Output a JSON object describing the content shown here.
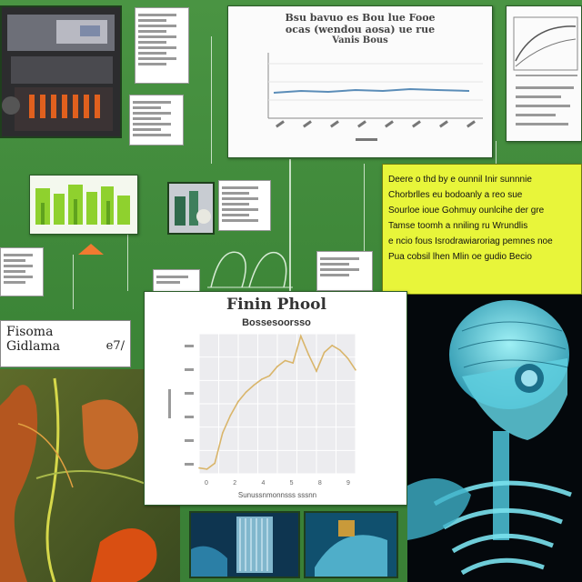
{
  "top_chart": {
    "title_line1": "Bsu bavuo es Bou lue Fooe",
    "title_line2": "ocas (wendou aosa) ue rue",
    "title_line3": "Vanis Bous"
  },
  "yellow_note": {
    "lines": [
      "Deere o thd by e ounnil Inir sunnnie",
      "Chorbrlles eu bodoanly a reo sue",
      "Sourloe ioue Gohmuy ounlcihe der gre",
      "Tamse toomh a nniling ru Wrundlis",
      "e ncio fous Isrodrawiaroriag pemnes noe",
      "Pua cobsil lhen Mlin oe gudio Becio"
    ]
  },
  "left_label": {
    "line1": "Fisoma",
    "line2": "Gidlama",
    "line3": "e7/"
  },
  "main_chart": {
    "title": "Finin Phool",
    "subtitle": "Bossesoorsso",
    "xlabel": "Sunussnmonnsss sssnn"
  },
  "chart_data": [
    {
      "type": "line",
      "title": "Finin Phool",
      "subtitle": "Bossesoorsso",
      "xlabel": "Sunussnmonnsss sssnn",
      "ylabel": "",
      "x": [
        0,
        0.5,
        1,
        1.5,
        2,
        2.5,
        3,
        3.5,
        4,
        4.5,
        5,
        5.5,
        6,
        6.5,
        7,
        7.5,
        8,
        8.5,
        9,
        9.5,
        10
      ],
      "series": [
        {
          "values": [
            0.5,
            0.4,
            0.9,
            3.5,
            5.0,
            6.2,
            7.0,
            7.6,
            8.1,
            8.4,
            9.2,
            9.7,
            9.5,
            11.8,
            10.2,
            8.8,
            10.4,
            11.0,
            10.6,
            9.9,
            8.9
          ]
        }
      ],
      "xlim": [
        0,
        10
      ],
      "ylim": [
        0,
        12
      ],
      "x_ticks": [
        "0",
        "2",
        "4",
        "5",
        "8",
        "9"
      ],
      "grid": true,
      "color": "#d9b56a"
    }
  ],
  "colors": {
    "board": "#3f8a3a",
    "yellow": "#e8f53a",
    "line_blue": "#5b8db8",
    "line_gold": "#d9b56a",
    "xray_cyan": "#4fd0e0"
  }
}
